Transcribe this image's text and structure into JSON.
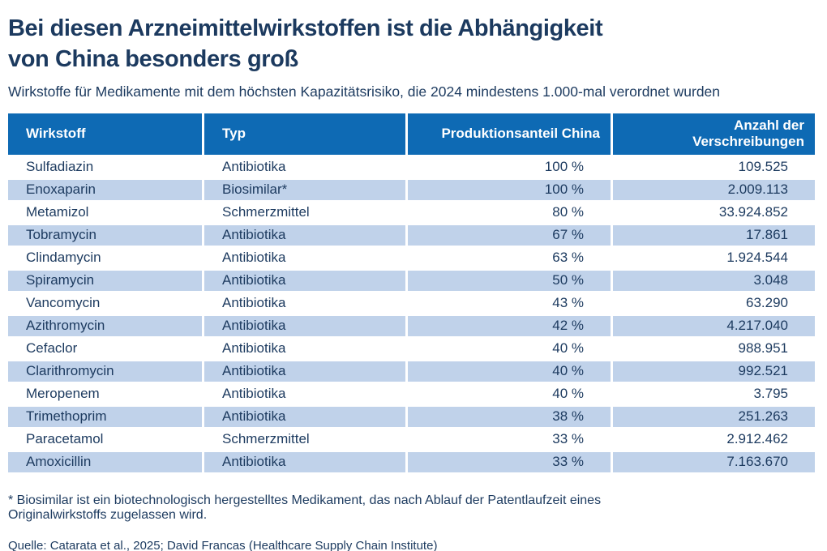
{
  "colors": {
    "header_bg": "#0e6ab4",
    "header_text": "#ffffff",
    "row_bg": "#ffffff",
    "row_alt_bg": "#c0d2ea",
    "text": "#1c3a5f"
  },
  "header": {
    "title_lines": [
      "Bei diesen Arzneimittelwirkstoffen ist die Abhängigkeit",
      "von China besonders groß"
    ],
    "subtitle": "Wirkstoffe für Medikamente mit dem höchsten Kapazitätsrisiko, die 2024 mindestens 1.000-mal verordnet wurden"
  },
  "chart_data": {
    "type": "table",
    "title": "Bei diesen Arzneimittelwirkstoffen ist die Abhängigkeit von China besonders groß",
    "subtitle": "Wirkstoffe für Medikamente mit dem höchsten Kapazitätsrisiko, die 2024 mindestens 1.000-mal verordnet wurden",
    "columns": [
      "Wirkstoff",
      "Typ",
      "Produktionsanteil China",
      "Anzahl der Verschreibungen"
    ],
    "rows": [
      [
        "Sulfadiazin",
        "Antibiotika",
        "100 %",
        "109.525"
      ],
      [
        "Enoxaparin",
        "Biosimilar*",
        "100 %",
        "2.009.113"
      ],
      [
        "Metamizol",
        "Schmerzmittel",
        "80 %",
        "33.924.852"
      ],
      [
        "Tobramycin",
        "Antibiotika",
        "67 %",
        "17.861"
      ],
      [
        "Clindamycin",
        "Antibiotika",
        "63 %",
        "1.924.544"
      ],
      [
        "Spiramycin",
        "Antibiotika",
        "50 %",
        "3.048"
      ],
      [
        "Vancomycin",
        "Antibiotika",
        "43 %",
        "63.290"
      ],
      [
        "Azithromycin",
        "Antibiotika",
        "42 %",
        "4.217.040"
      ],
      [
        "Cefaclor",
        "Antibiotika",
        "40 %",
        "988.951"
      ],
      [
        "Clarithromycin",
        "Antibiotika",
        "40 %",
        "992.521"
      ],
      [
        "Meropenem",
        "Antibiotika",
        "40 %",
        "3.795"
      ],
      [
        "Trimethoprim",
        "Antibiotika",
        "38 %",
        "251.263"
      ],
      [
        "Paracetamol",
        "Schmerzmittel",
        "33 %",
        "2.912.462"
      ],
      [
        "Amoxicillin",
        "Antibiotika",
        "33 %",
        "7.163.670"
      ]
    ],
    "production_share_china_pct": [
      100,
      100,
      80,
      67,
      63,
      50,
      43,
      42,
      40,
      40,
      40,
      38,
      33,
      33
    ],
    "prescriptions_2024": [
      109525,
      2009113,
      33924852,
      17861,
      1924544,
      3048,
      63290,
      4217040,
      988951,
      992521,
      3795,
      251263,
      2912462,
      7163670
    ]
  },
  "footer": {
    "footnote_lines": [
      "* Biosimilar ist ein biotechnologisch hergestelltes Medikament, das nach Ablauf der Patentlaufzeit eines",
      "Originalwirkstoffs zugelassen wird."
    ],
    "source": "Quelle: Catarata et al., 2025; David Francas (Healthcare Supply Chain Institute)"
  }
}
